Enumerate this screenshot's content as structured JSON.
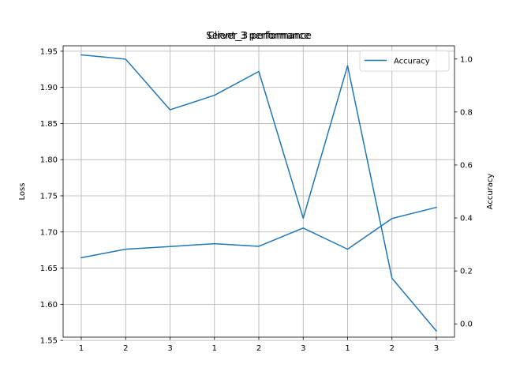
{
  "chart_data": {
    "type": "line",
    "titles": [
      "Client_3 performance",
      "Server_3 performance"
    ],
    "categories": [
      "1",
      "2",
      "3",
      "1",
      "2",
      "3",
      "1",
      "2",
      "3"
    ],
    "series": [
      {
        "name": "Loss",
        "axis": "left",
        "values": [
          1.945,
          1.939,
          1.869,
          1.889,
          1.922,
          1.719,
          1.93,
          1.636,
          1.563
        ],
        "color": "#1f77b4"
      },
      {
        "name": "Accuracy",
        "axis": "right",
        "values": [
          0.25,
          0.282,
          0.292,
          0.303,
          0.293,
          0.362,
          0.282,
          0.398,
          0.44
        ],
        "color": "#1f77b4"
      }
    ],
    "ylabel": "Loss",
    "ylabel_right": "Accuracy",
    "ylim": [
      1.5545,
      1.9575
    ],
    "ylim_right": [
      -0.05,
      1.05
    ],
    "yticks": [
      1.55,
      1.6,
      1.65,
      1.7,
      1.75,
      1.8,
      1.85,
      1.9,
      1.95
    ],
    "ytick_labels": [
      "1.55",
      "1.60",
      "1.65",
      "1.70",
      "1.75",
      "1.80",
      "1.85",
      "1.90",
      "1.95"
    ],
    "yticks_right": [
      0.0,
      0.2,
      0.4,
      0.6,
      0.8,
      1.0
    ],
    "ytick_labels_right": [
      "0.0",
      "0.2",
      "0.4",
      "0.6",
      "0.8",
      "1.0"
    ],
    "legend": {
      "entries": [
        "Accuracy"
      ],
      "placement": "top-right"
    },
    "grid": true
  }
}
